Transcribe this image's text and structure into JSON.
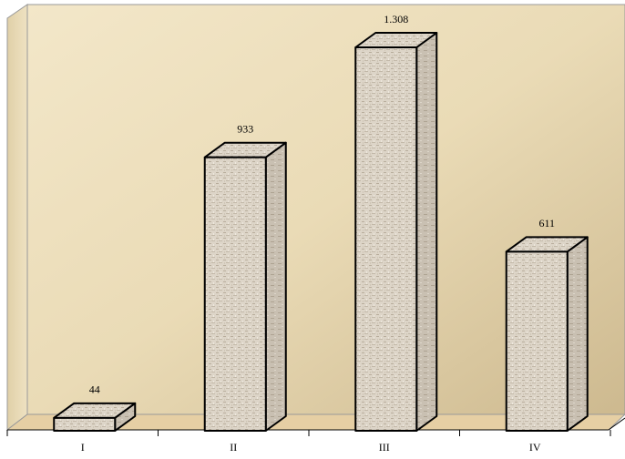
{
  "chart_data": {
    "type": "bar",
    "categories": [
      "I",
      "II",
      "III",
      "IV"
    ],
    "values": [
      44,
      933,
      1308,
      611
    ],
    "value_labels": [
      "44",
      "933",
      "1.308",
      "611"
    ]
  }
}
